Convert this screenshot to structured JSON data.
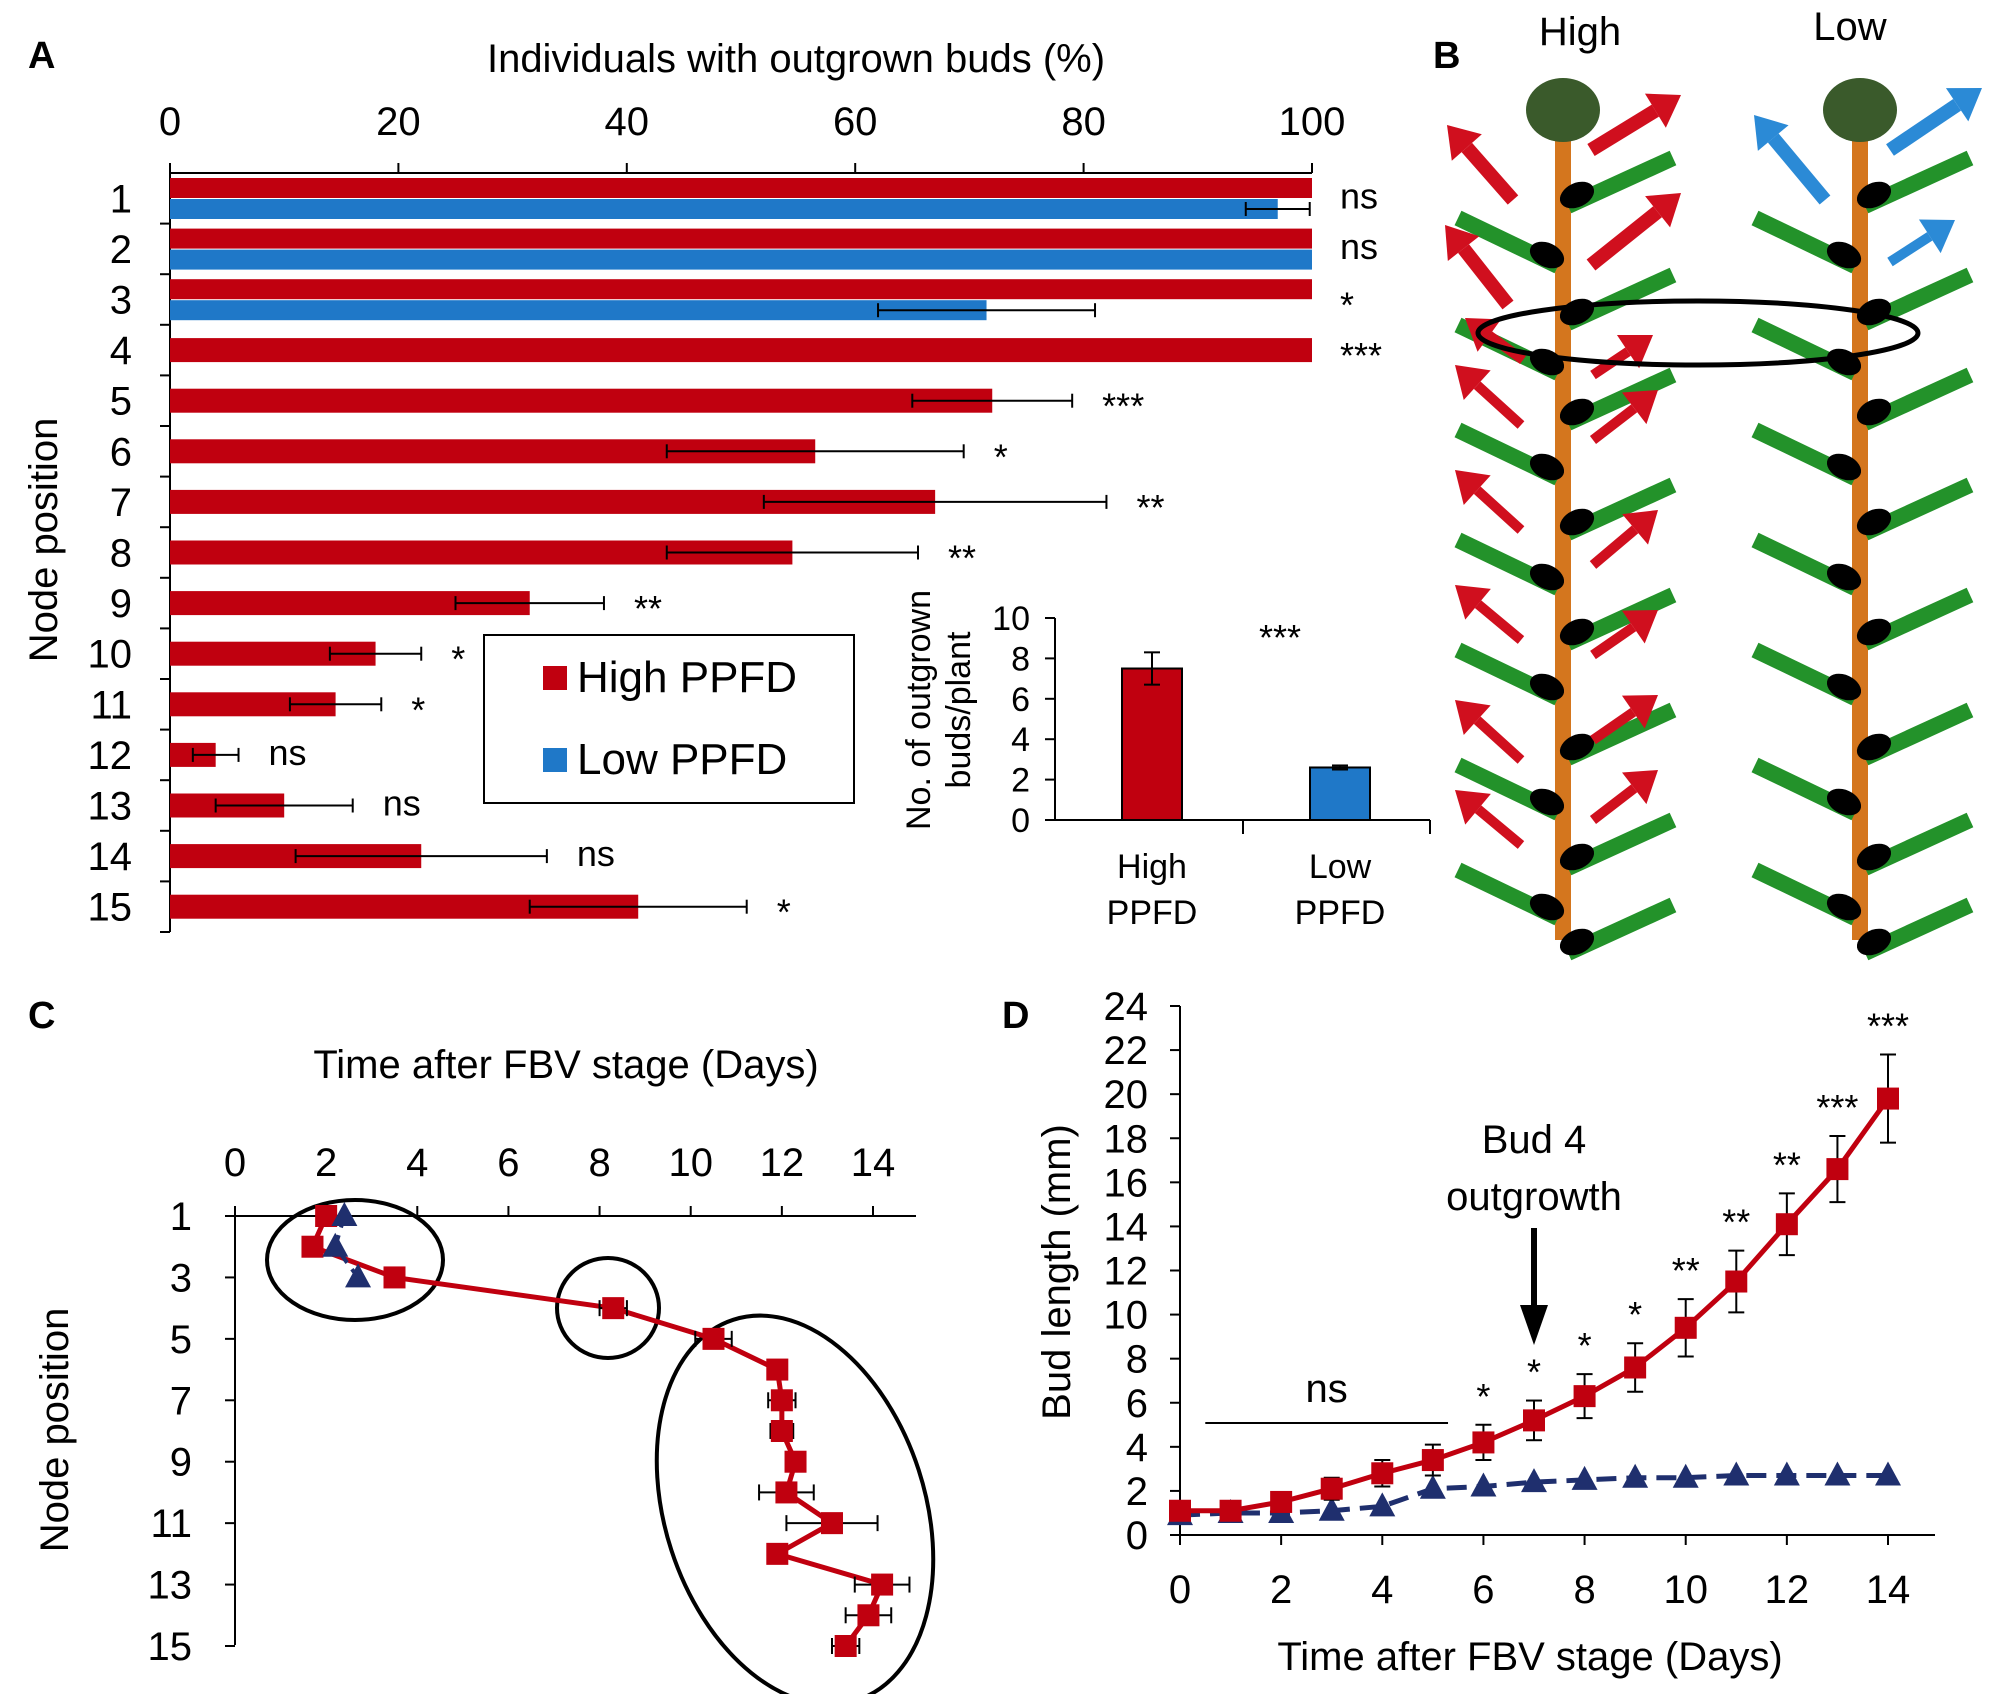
{
  "colors": {
    "high": "#c0000f",
    "low": "#1f78c8",
    "low_dark": "#1f2f6e",
    "stem": "#d4761e",
    "leaf": "#23922a",
    "apex": "#3a5a2b",
    "bud": "#000000",
    "red_arrow": "#d00f1e",
    "blue_arrow": "#2b8ad6"
  },
  "panels": {
    "a": {
      "label": "A"
    },
    "b": {
      "label": "B",
      "plant_high": "High",
      "plant_low": "Low"
    },
    "c": {
      "label": "C"
    },
    "d": {
      "label": "D"
    }
  },
  "chart_data": [
    {
      "id": "A",
      "type": "bar",
      "orientation": "horizontal",
      "xlabel": "Individuals with outgrown buds (%)",
      "ylabel": "Node position",
      "xlim": [
        0,
        100
      ],
      "xticks": [
        "0",
        "20",
        "40",
        "60",
        "80",
        "100"
      ],
      "categories": [
        "1",
        "2",
        "3",
        "4",
        "5",
        "6",
        "7",
        "8",
        "9",
        "10",
        "11",
        "12",
        "13",
        "14",
        "15"
      ],
      "series": [
        {
          "name": "High PPFD",
          "values": [
            100,
            100,
            100,
            100,
            72,
            56.5,
            67,
            54.5,
            31.5,
            18,
            14.5,
            4,
            10,
            22,
            41
          ],
          "err": [
            0,
            0,
            0,
            0,
            7,
            13,
            15,
            11,
            6.5,
            4,
            4,
            2,
            6,
            11,
            9.5
          ]
        },
        {
          "name": "Low PPFD",
          "values": [
            97,
            100,
            71.5,
            null,
            null,
            null,
            null,
            null,
            null,
            null,
            null,
            null,
            null,
            null,
            null
          ],
          "err": [
            2.8,
            0,
            9.5,
            null,
            null,
            null,
            null,
            null,
            null,
            null,
            null,
            null,
            null,
            null,
            null
          ]
        }
      ],
      "significance": [
        "ns",
        "ns",
        "*",
        "***",
        "***",
        "*",
        "**",
        "**",
        "**",
        "*",
        "*",
        "ns",
        "ns",
        "ns",
        "*"
      ],
      "legend": [
        "High PPFD",
        "Low PPFD"
      ],
      "inset": {
        "type": "bar",
        "ylabel_line1": "No. of outgrown",
        "ylabel_line2": "buds/plant",
        "ylim": [
          0,
          10
        ],
        "yticks": [
          "0",
          "2",
          "4",
          "6",
          "8",
          "10"
        ],
        "categories": [
          {
            "line1": "High",
            "line2": "PPFD"
          },
          {
            "line1": "Low",
            "line2": "PPFD"
          }
        ],
        "values": [
          7.5,
          2.6
        ],
        "err": [
          0.8,
          0.1
        ],
        "significance": "***"
      }
    },
    {
      "id": "C",
      "type": "line",
      "xlabel": "Time after FBV stage (Days)",
      "ylabel": "Node position",
      "xlim": [
        0,
        15
      ],
      "xticks": [
        "0",
        "2",
        "4",
        "6",
        "8",
        "10",
        "12",
        "14"
      ],
      "ylim": [
        1,
        15
      ],
      "yticks": [
        "1",
        "3",
        "5",
        "7",
        "9",
        "11",
        "13",
        "15"
      ],
      "series": [
        {
          "name": "High PPFD",
          "x": [
            2,
            1.7,
            3.5,
            8.3,
            10.5,
            11.9,
            12,
            12,
            12.3,
            12.1,
            13.1,
            11.9,
            14.2,
            13.9,
            13.4
          ],
          "y": [
            1,
            2,
            3,
            4,
            5,
            6,
            7,
            8,
            9,
            10,
            11,
            12,
            13,
            14,
            15
          ],
          "xerr": [
            0.2,
            0.2,
            0.2,
            0.3,
            0.4,
            0.2,
            0.3,
            0.25,
            0.2,
            0.6,
            1.0,
            0.2,
            0.6,
            0.5,
            0.3
          ]
        },
        {
          "name": "Low PPFD",
          "x": [
            2.4,
            2.2,
            2.7
          ],
          "y": [
            1,
            2,
            3
          ],
          "xerr": [
            0.1,
            0.1,
            0.1
          ]
        }
      ]
    },
    {
      "id": "D",
      "type": "line",
      "xlabel": "Time after FBV stage (Days)",
      "ylabel": "Bud length (mm)",
      "xlim": [
        0,
        15
      ],
      "xticks": [
        "0",
        "2",
        "4",
        "6",
        "8",
        "10",
        "12",
        "14"
      ],
      "ylim": [
        0,
        24
      ],
      "yticks": [
        "0",
        "2",
        "4",
        "6",
        "8",
        "10",
        "12",
        "14",
        "16",
        "18",
        "20",
        "22",
        "24"
      ],
      "series": [
        {
          "name": "High PPFD",
          "x": [
            0,
            1,
            2,
            3,
            4,
            5,
            6,
            7,
            8,
            9,
            10,
            11,
            12,
            13,
            14
          ],
          "y": [
            1.1,
            1.1,
            1.5,
            2.1,
            2.8,
            3.4,
            4.2,
            5.2,
            6.3,
            7.6,
            9.4,
            11.5,
            14.1,
            16.6,
            19.8
          ],
          "err": [
            0.3,
            0.3,
            0.4,
            0.5,
            0.6,
            0.7,
            0.8,
            0.9,
            1.0,
            1.1,
            1.3,
            1.4,
            1.4,
            1.5,
            2.0
          ]
        },
        {
          "name": "Low PPFD",
          "x": [
            0,
            1,
            2,
            3,
            4,
            5,
            6,
            7,
            8,
            9,
            10,
            11,
            12,
            13,
            14
          ],
          "y": [
            0.9,
            1.0,
            1.0,
            1.1,
            1.3,
            2.1,
            2.2,
            2.4,
            2.5,
            2.6,
            2.6,
            2.7,
            2.7,
            2.7,
            2.7
          ],
          "err": [
            0.2,
            0.2,
            0.2,
            0.2,
            0.2,
            0.2,
            0.2,
            0.2,
            0.2,
            0.2,
            0.2,
            0.2,
            0.2,
            0.2,
            0.2
          ]
        }
      ],
      "significance": [
        null,
        null,
        null,
        null,
        null,
        null,
        "*",
        "*",
        "*",
        "*",
        "**",
        "**",
        "**",
        "***",
        "***"
      ],
      "ns_label": "ns",
      "ns_range_days": [
        0.5,
        5.3
      ],
      "annotation_line1": "Bud 4",
      "annotation_line2": "outgrowth",
      "annotation_day": 7
    }
  ]
}
